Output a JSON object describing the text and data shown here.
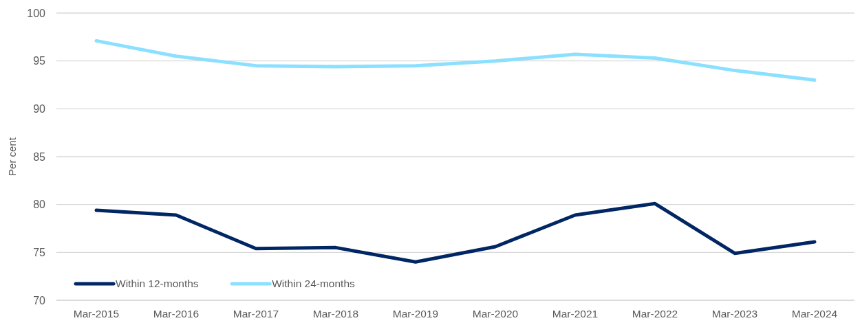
{
  "chart_data": {
    "type": "line",
    "categories": [
      "Mar-2015",
      "Mar-2016",
      "Mar-2017",
      "Mar-2018",
      "Mar-2019",
      "Mar-2020",
      "Mar-2021",
      "Mar-2022",
      "Mar-2023",
      "Mar-2024"
    ],
    "series": [
      {
        "name": "Within 12-months",
        "color": "#002664",
        "values": [
          79.4,
          78.9,
          75.4,
          75.5,
          74.0,
          75.6,
          78.9,
          80.1,
          74.9,
          76.1
        ]
      },
      {
        "name": "Within 24-months",
        "color": "#8ce0ff",
        "values": [
          97.1,
          95.5,
          94.5,
          94.4,
          94.5,
          95.0,
          95.7,
          95.3,
          94.0,
          93.0
        ]
      }
    ],
    "ylabel": "Per cent",
    "ylim": [
      70,
      100
    ],
    "yticks": [
      70,
      75,
      80,
      85,
      90,
      95,
      100
    ],
    "grid": "y",
    "legend": "bottom left",
    "marker": "none",
    "line_style": "solid"
  }
}
